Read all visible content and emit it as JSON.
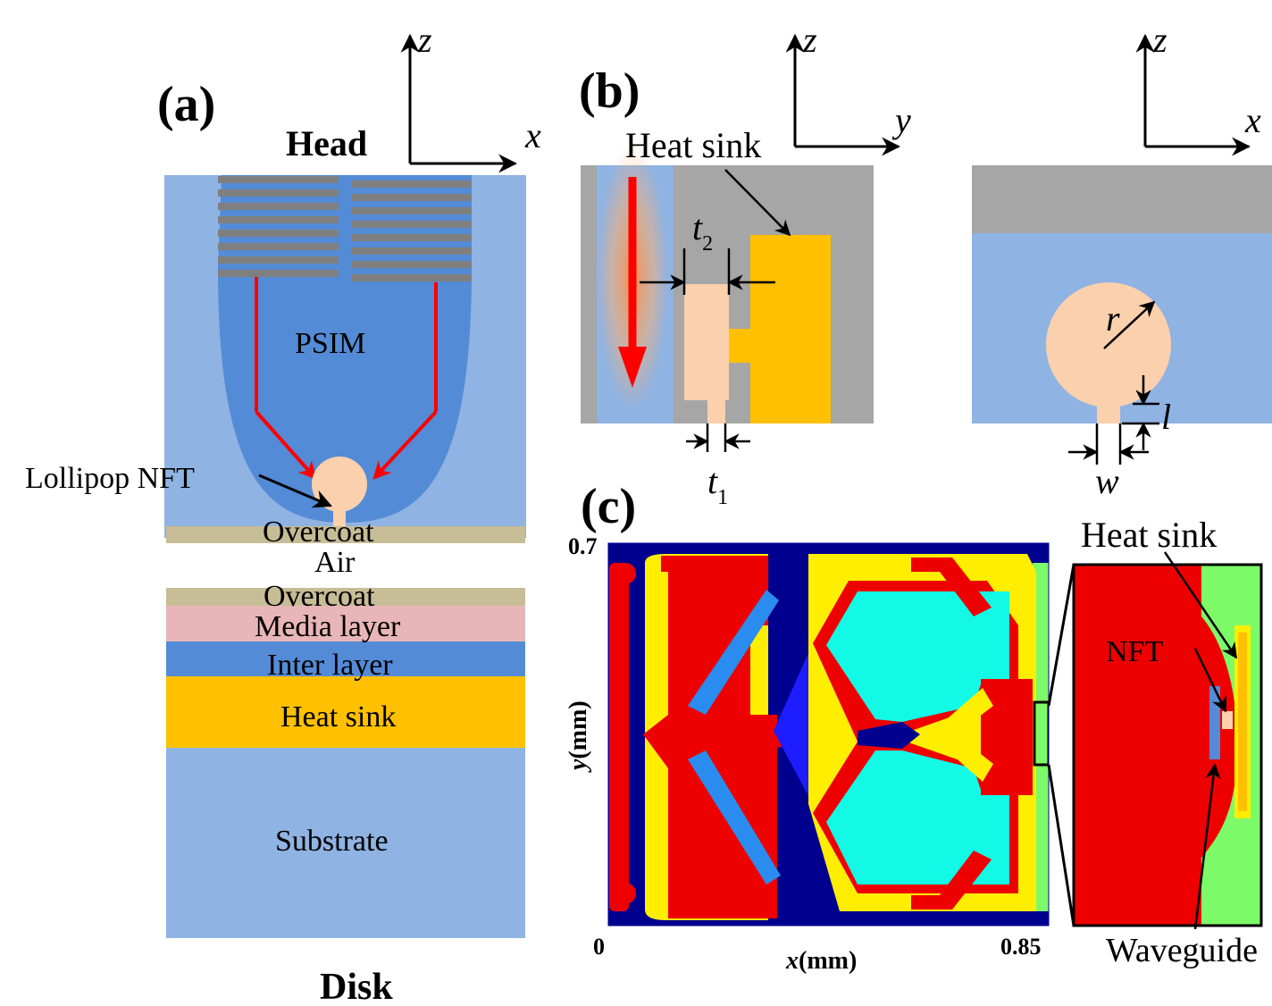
{
  "panel_a": {
    "label": "(a)",
    "head": "Head",
    "disk": "Disk",
    "axis_z": "z",
    "axis_x": "x",
    "layers": {
      "psim": "PSIM",
      "lollipop": "Lollipop NFT",
      "overcoat_top": "Overcoat",
      "air": "Air",
      "overcoat_bottom": "Overcoat",
      "media": "Media layer",
      "inter": "Inter layer",
      "heat_sink": "Heat sink",
      "substrate": "Substrate"
    }
  },
  "panel_b": {
    "label": "(b)",
    "heat_sink": "Heat sink",
    "axis_z": "z",
    "axis_y": "y",
    "axis_z2": "z",
    "axis_x2": "x",
    "t2": "t",
    "t2_sub": "2",
    "t1": "t",
    "t1_sub": "1",
    "r": "r",
    "l": "l",
    "w": "w"
  },
  "panel_c": {
    "label": "(c)",
    "y_max": "0.7",
    "x_min": "0",
    "x_max": "0.85",
    "ylabel_var": "y",
    "ylabel_unit": "(mm)",
    "xlabel_var": "x",
    "xlabel_unit": "(mm)",
    "inset_heat_sink": "Heat sink",
    "inset_nft": "NFT",
    "inset_waveguide": "Waveguide"
  },
  "colors": {
    "light_blue": "#8fb3e2",
    "psim_blue": "#548bd6",
    "gray": "#a6a6a6",
    "coil_gray": "#7f7f7f",
    "peach": "#fbd0ac",
    "gold": "#ffc000",
    "overcoat": "#c6bd96",
    "media": "#e8b6b8",
    "inter": "#548bd6",
    "red_arrow": "#ff0000",
    "navy": "#00008f",
    "field_red": "#ee0000",
    "field_yellow": "#ffee00",
    "field_cyan": "#12fae6",
    "field_green": "#7dfa68",
    "field_blue": "#2a8cee"
  }
}
